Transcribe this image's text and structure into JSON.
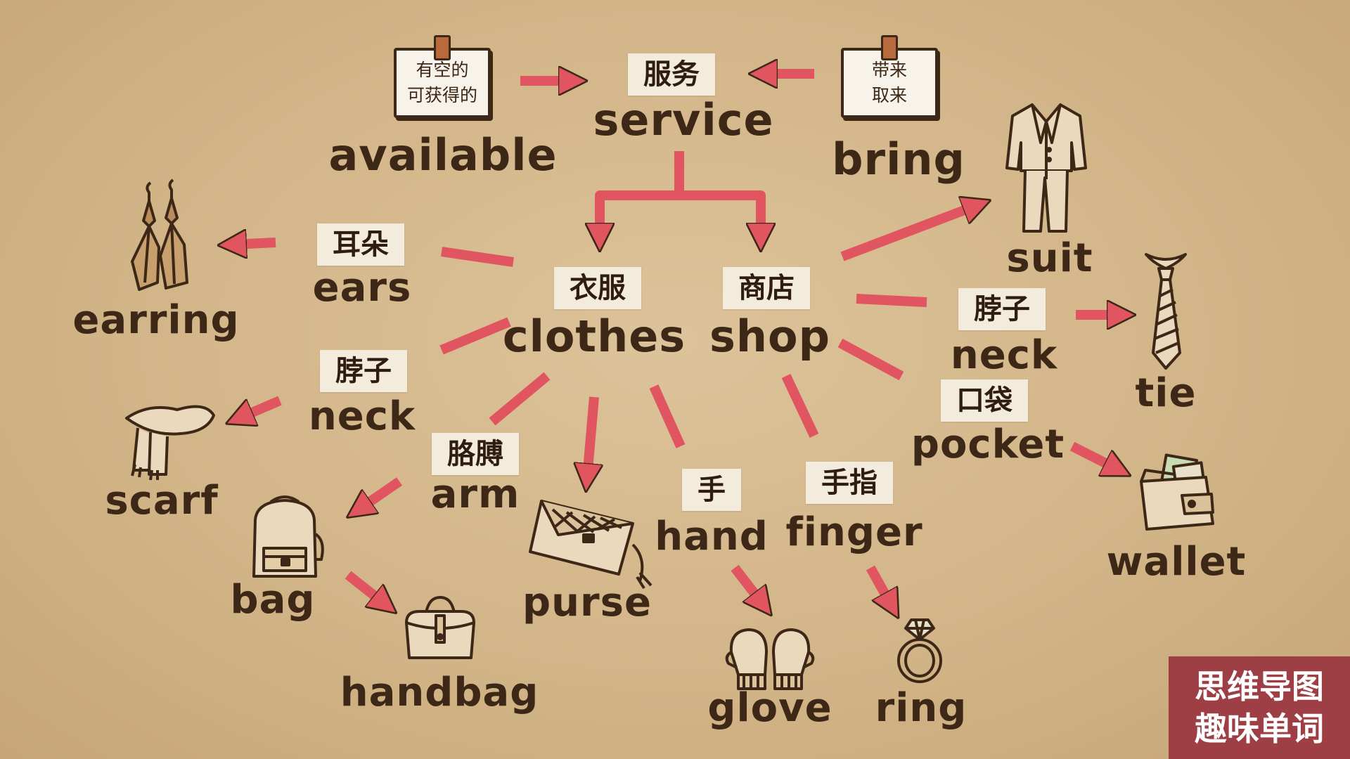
{
  "colors": {
    "arrow": "#e05560",
    "ink": "#3d2716",
    "label_bg": "#f3ebdc",
    "badge_bg": "#9e3f45"
  },
  "notes": {
    "available": {
      "line1": "有空的",
      "line2": "可获得的"
    },
    "bring": {
      "line1": "带来",
      "line2": "取来"
    }
  },
  "words": {
    "service": {
      "cn": "服务",
      "en": "service"
    },
    "available": {
      "en": "available"
    },
    "bring": {
      "en": "bring"
    },
    "clothes": {
      "cn": "衣服",
      "en": "clothes"
    },
    "shop": {
      "cn": "商店",
      "en": "shop"
    },
    "ears": {
      "cn": "耳朵",
      "en": "ears"
    },
    "earring": {
      "en": "earring"
    },
    "neck_left": {
      "cn": "脖子",
      "en": "neck"
    },
    "scarf": {
      "en": "scarf"
    },
    "arm": {
      "cn": "胳膊",
      "en": "arm"
    },
    "bag": {
      "en": "bag"
    },
    "handbag": {
      "en": "handbag"
    },
    "purse": {
      "en": "purse"
    },
    "hand": {
      "cn": "手",
      "en": "hand"
    },
    "glove": {
      "en": "glove"
    },
    "finger": {
      "cn": "手指",
      "en": "finger"
    },
    "ring": {
      "en": "ring"
    },
    "suit": {
      "en": "suit"
    },
    "neck_right": {
      "cn": "脖子",
      "en": "neck"
    },
    "tie": {
      "en": "tie"
    },
    "pocket": {
      "cn": "口袋",
      "en": "pocket"
    },
    "wallet": {
      "en": "wallet"
    }
  },
  "icons": [
    "earring-icon",
    "suit-icon",
    "tie-icon",
    "scarf-icon",
    "backpack-icon",
    "clutch-purse-icon",
    "wallet-icon",
    "handbag-icon",
    "mittens-icon",
    "ring-icon"
  ],
  "badge": {
    "line1": "思维导图",
    "line2": "趣味单词"
  }
}
